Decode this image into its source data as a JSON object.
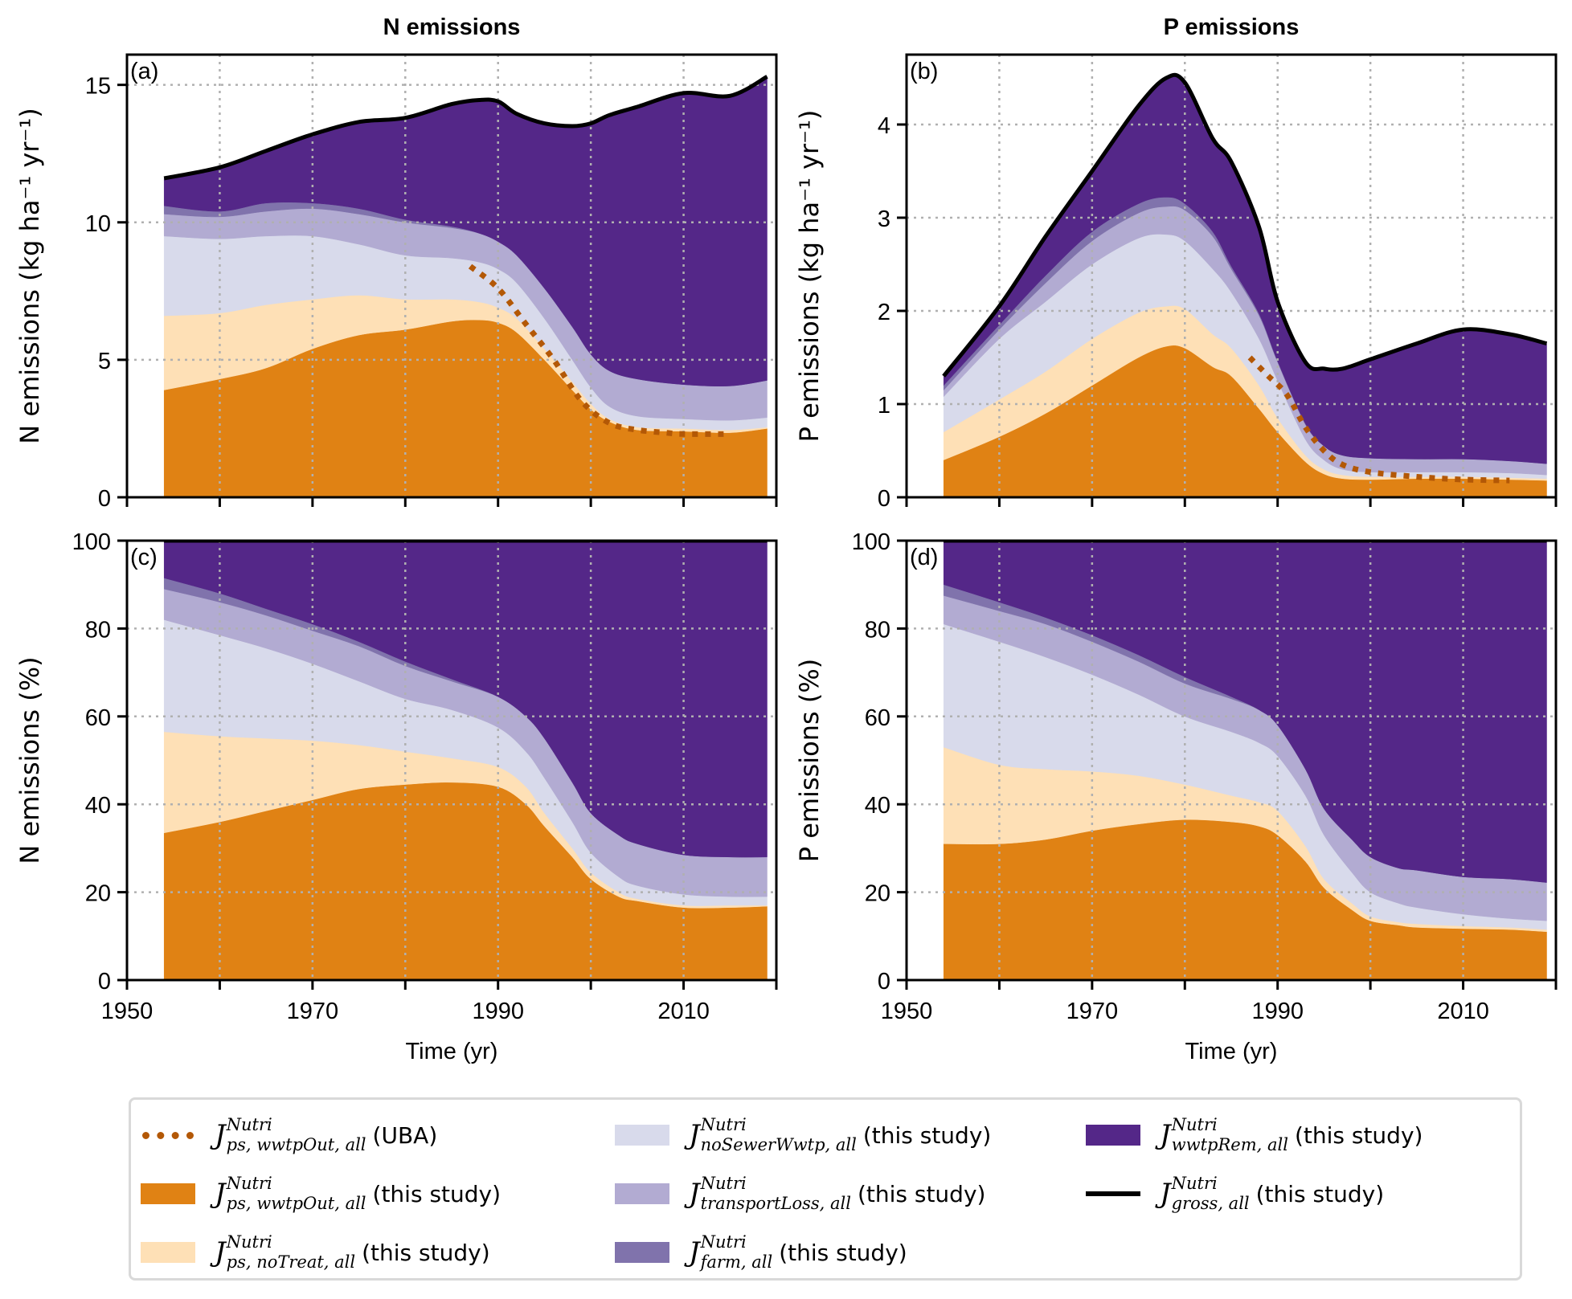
{
  "figure": {
    "col_titles": [
      "N emissions",
      "P emissions"
    ],
    "xlabel": "Time (yr)",
    "colors": {
      "wwtpOut": "#e08214",
      "noTreat": "#fee0b6",
      "noSewerWwtp": "#d8daeb",
      "transportLoss": "#b2abd2",
      "farm": "#8073ac",
      "wwtpRem": "#542788",
      "gross": "#000000",
      "uba": "#b35806",
      "grid": "#b0b0b0"
    }
  },
  "legend": {
    "symbol_base": "J",
    "symbol_sup": "Nutri",
    "items": [
      {
        "key": "uba",
        "style": "dotted",
        "sub": "ps, wwtpOut, all",
        "suffix": "(UBA)"
      },
      {
        "key": "wwtpOut",
        "style": "patch",
        "sub": "ps, wwtpOut, all",
        "suffix": "(this study)"
      },
      {
        "key": "noTreat",
        "style": "patch",
        "sub": "ps, noTreat, all",
        "suffix": "(this study)"
      },
      {
        "key": "noSewerWwtp",
        "style": "patch",
        "sub": "noSewerWwtp, all",
        "suffix": "(this study)"
      },
      {
        "key": "transportLoss",
        "style": "patch",
        "sub": "transportLoss, all",
        "suffix": "(this study)"
      },
      {
        "key": "farm",
        "style": "patch",
        "sub": "farm, all",
        "suffix": "(this study)"
      },
      {
        "key": "wwtpRem",
        "style": "patch",
        "sub": "wwtpRem, all",
        "suffix": "(this study)"
      },
      {
        "key": "gross",
        "style": "line",
        "sub": "gross, all",
        "suffix": "(this study)"
      }
    ]
  },
  "chart_data": [
    {
      "panel": "(a)",
      "type": "area",
      "stacked": true,
      "title": "N emissions",
      "xlabel": "",
      "ylabel": "N emissions (kg ha⁻¹ yr⁻¹)",
      "xlim": [
        1950,
        2020
      ],
      "ylim": [
        0,
        16.1
      ],
      "xticks": [
        1950,
        1960,
        1970,
        1980,
        1990,
        2000,
        2010,
        2020
      ],
      "xticklabels": [
        "",
        "",
        "",
        "",
        "",
        "",
        "",
        ""
      ],
      "yticks": [
        0,
        5,
        10,
        15
      ],
      "yticklabels": [
        "0",
        "5",
        "10",
        "15"
      ],
      "grid": true,
      "x": [
        1954,
        1960,
        1965,
        1970,
        1975,
        1980,
        1985,
        1988,
        1990,
        1992,
        1995,
        1998,
        2000,
        2002,
        2005,
        2010,
        2015,
        2019
      ],
      "cumulative_tops": {
        "wwtpOut": [
          3.9,
          4.3,
          4.7,
          5.4,
          5.9,
          6.1,
          6.4,
          6.45,
          6.35,
          6.0,
          5.0,
          3.9,
          3.2,
          2.75,
          2.45,
          2.4,
          2.35,
          2.5
        ],
        "noTreat": [
          6.6,
          6.7,
          7.0,
          7.2,
          7.35,
          7.2,
          7.2,
          7.1,
          6.9,
          6.5,
          5.4,
          4.2,
          3.4,
          2.85,
          2.55,
          2.5,
          2.45,
          2.55
        ],
        "noSewerWwtp": [
          9.5,
          9.4,
          9.5,
          9.5,
          9.2,
          8.8,
          8.7,
          8.55,
          8.3,
          7.8,
          6.5,
          5.0,
          4.0,
          3.3,
          2.95,
          2.85,
          2.8,
          2.9
        ],
        "transportLoss": [
          10.3,
          10.2,
          10.4,
          10.5,
          10.3,
          10.0,
          9.8,
          9.6,
          9.3,
          8.8,
          7.6,
          6.2,
          5.2,
          4.6,
          4.3,
          4.1,
          4.05,
          4.25
        ],
        "farm": [
          10.6,
          10.4,
          10.7,
          10.7,
          10.5,
          10.1,
          9.85,
          9.6,
          9.3,
          8.8,
          7.6,
          6.2,
          5.2,
          4.6,
          4.3,
          4.1,
          4.05,
          4.25
        ],
        "wwtpRem": [
          11.6,
          12.0,
          12.6,
          13.2,
          13.65,
          13.8,
          14.3,
          14.45,
          14.4,
          13.95,
          13.6,
          13.5,
          13.6,
          13.9,
          14.2,
          14.7,
          14.6,
          15.3
        ]
      },
      "gross": [
        11.6,
        12.0,
        12.6,
        13.2,
        13.65,
        13.8,
        14.3,
        14.45,
        14.4,
        13.95,
        13.6,
        13.5,
        13.6,
        13.9,
        14.2,
        14.7,
        14.6,
        15.3
      ],
      "uba": {
        "x": [
          1987,
          1990,
          1993,
          1996,
          1999,
          2002,
          2005,
          2008,
          2010,
          2015
        ],
        "y": [
          8.4,
          7.6,
          6.3,
          5.0,
          3.5,
          2.7,
          2.45,
          2.35,
          2.3,
          2.3
        ]
      }
    },
    {
      "panel": "(b)",
      "type": "area",
      "stacked": true,
      "title": "P emissions",
      "xlabel": "",
      "ylabel": "P emissions (kg ha⁻¹ yr⁻¹)",
      "xlim": [
        1950,
        2020
      ],
      "ylim": [
        0,
        4.75
      ],
      "xticks": [
        1950,
        1960,
        1970,
        1980,
        1990,
        2000,
        2010,
        2020
      ],
      "xticklabels": [
        "",
        "",
        "",
        "",
        "",
        "",
        "",
        ""
      ],
      "yticks": [
        0,
        1,
        2,
        3,
        4
      ],
      "yticklabels": [
        "0",
        "1",
        "2",
        "3",
        "4"
      ],
      "grid": true,
      "x": [
        1954,
        1960,
        1965,
        1970,
        1975,
        1978,
        1980,
        1983,
        1985,
        1988,
        1990,
        1993,
        1995,
        1997,
        2000,
        2005,
        2010,
        2015,
        2019
      ],
      "cumulative_tops": {
        "wwtpOut": [
          0.4,
          0.65,
          0.9,
          1.2,
          1.5,
          1.62,
          1.6,
          1.4,
          1.3,
          0.95,
          0.7,
          0.38,
          0.25,
          0.2,
          0.19,
          0.2,
          0.2,
          0.19,
          0.18
        ],
        "noTreat": [
          0.7,
          1.05,
          1.35,
          1.7,
          1.98,
          2.05,
          2.02,
          1.75,
          1.6,
          1.2,
          0.85,
          0.45,
          0.3,
          0.24,
          0.22,
          0.22,
          0.22,
          0.21,
          0.2
        ],
        "noSewerWwtp": [
          1.08,
          1.7,
          2.1,
          2.5,
          2.78,
          2.82,
          2.75,
          2.45,
          2.2,
          1.7,
          1.25,
          0.62,
          0.4,
          0.3,
          0.27,
          0.27,
          0.27,
          0.26,
          0.24
        ],
        "transportLoss": [
          1.15,
          1.8,
          2.3,
          2.75,
          3.05,
          3.12,
          3.08,
          2.8,
          2.45,
          1.95,
          1.45,
          0.78,
          0.55,
          0.45,
          0.42,
          0.41,
          0.41,
          0.39,
          0.36
        ],
        "farm": [
          1.2,
          1.85,
          2.38,
          2.85,
          3.15,
          3.22,
          3.15,
          2.85,
          2.48,
          1.97,
          1.46,
          0.79,
          0.55,
          0.45,
          0.42,
          0.41,
          0.41,
          0.39,
          0.36
        ],
        "wwtpRem": [
          1.3,
          2.05,
          2.8,
          3.5,
          4.2,
          4.5,
          4.45,
          3.85,
          3.6,
          2.9,
          2.1,
          1.45,
          1.38,
          1.38,
          1.48,
          1.65,
          1.8,
          1.75,
          1.65
        ]
      },
      "gross": [
        1.3,
        2.05,
        2.8,
        3.5,
        4.2,
        4.5,
        4.45,
        3.85,
        3.6,
        2.9,
        2.1,
        1.45,
        1.38,
        1.38,
        1.48,
        1.65,
        1.8,
        1.75,
        1.65
      ],
      "uba": {
        "x": [
          1987,
          1989,
          1991,
          1993,
          1995,
          1997,
          2000,
          2005,
          2010,
          2015
        ],
        "y": [
          1.5,
          1.3,
          1.1,
          0.75,
          0.5,
          0.35,
          0.27,
          0.22,
          0.19,
          0.18
        ]
      }
    },
    {
      "panel": "(c)",
      "type": "area",
      "stacked": true,
      "title": "",
      "xlabel": "Time (yr)",
      "ylabel": "N emissions (%)",
      "xlim": [
        1950,
        2020
      ],
      "ylim": [
        0,
        100
      ],
      "xticks": [
        1950,
        1960,
        1970,
        1980,
        1990,
        2000,
        2010,
        2020
      ],
      "xticklabels": [
        "1950",
        "",
        "1970",
        "",
        "1990",
        "",
        "2010",
        ""
      ],
      "yticks": [
        0,
        20,
        40,
        60,
        80,
        100
      ],
      "yticklabels": [
        "0",
        "20",
        "40",
        "60",
        "80",
        "100"
      ],
      "grid": true,
      "x": [
        1954,
        1960,
        1965,
        1970,
        1975,
        1980,
        1985,
        1990,
        1993,
        1995,
        1998,
        2000,
        2003,
        2005,
        2010,
        2015,
        2019
      ],
      "cumulative_tops": {
        "wwtpOut": [
          33.5,
          36,
          38.5,
          41,
          43.5,
          44.5,
          45,
          44,
          40,
          35,
          28,
          23,
          19,
          18,
          16.5,
          16.5,
          16.8
        ],
        "noTreat": [
          56.5,
          55.5,
          55,
          54.5,
          53.5,
          52,
          50.5,
          48.5,
          44,
          38,
          30,
          24.5,
          20,
          18.5,
          17,
          17,
          17
        ],
        "noSewerWwtp": [
          82,
          78.5,
          75.5,
          72,
          68,
          64,
          61.5,
          57.5,
          52,
          46,
          36,
          29,
          23.5,
          21.5,
          19.5,
          19,
          19
        ],
        "transportLoss": [
          89,
          86,
          83,
          79.5,
          76,
          71.5,
          68,
          64.5,
          60,
          55,
          45,
          38,
          33,
          31,
          28.5,
          28,
          28
        ],
        "farm": [
          91.5,
          88,
          84.5,
          81,
          77,
          72.5,
          68.5,
          64.5,
          60,
          55,
          45,
          38,
          33,
          31,
          28.5,
          28,
          28
        ],
        "wwtpRem": [
          100,
          100,
          100,
          100,
          100,
          100,
          100,
          100,
          100,
          100,
          100,
          100,
          100,
          100,
          100,
          100,
          100
        ]
      },
      "gross": [
        100,
        100,
        100,
        100,
        100,
        100,
        100,
        100,
        100,
        100,
        100,
        100,
        100,
        100,
        100,
        100,
        100
      ]
    },
    {
      "panel": "(d)",
      "type": "area",
      "stacked": true,
      "title": "",
      "xlabel": "Time (yr)",
      "ylabel": "P emissions (%)",
      "xlim": [
        1950,
        2020
      ],
      "ylim": [
        0,
        100
      ],
      "xticks": [
        1950,
        1960,
        1970,
        1980,
        1990,
        2000,
        2010,
        2020
      ],
      "xticklabels": [
        "1950",
        "",
        "1970",
        "",
        "1990",
        "",
        "2010",
        ""
      ],
      "yticks": [
        0,
        20,
        40,
        60,
        80,
        100
      ],
      "yticklabels": [
        "0",
        "20",
        "40",
        "60",
        "80",
        "100"
      ],
      "grid": true,
      "x": [
        1954,
        1960,
        1965,
        1970,
        1975,
        1980,
        1985,
        1988,
        1990,
        1993,
        1995,
        1998,
        2000,
        2003,
        2005,
        2010,
        2015,
        2019
      ],
      "cumulative_tops": {
        "wwtpOut": [
          31,
          31,
          32,
          34,
          35.5,
          36.5,
          36,
          35,
          33,
          27,
          21,
          16,
          13.5,
          12.5,
          12,
          11.7,
          11.5,
          11
        ],
        "noTreat": [
          53,
          49,
          48,
          47.5,
          46.5,
          44.5,
          42,
          40.5,
          38.5,
          30.5,
          23,
          17.5,
          14.5,
          13.2,
          12.8,
          12.3,
          12,
          11.5
        ],
        "noSewerWwtp": [
          81,
          77,
          73.5,
          69.5,
          65,
          60,
          56.5,
          54,
          51,
          42,
          33,
          24.5,
          20,
          17.5,
          16.5,
          15,
          14,
          13.5
        ],
        "transportLoss": [
          87.5,
          84,
          81,
          77,
          72.5,
          67.5,
          64,
          61.5,
          58,
          48,
          39,
          32,
          28,
          25.5,
          25,
          23.5,
          23,
          22.2
        ],
        "farm": [
          90,
          86,
          82.5,
          78.5,
          74,
          69,
          64.5,
          61.5,
          58,
          48,
          39,
          32,
          28,
          25.5,
          25,
          23.5,
          23,
          22.2
        ],
        "wwtpRem": [
          100,
          100,
          100,
          100,
          100,
          100,
          100,
          100,
          100,
          100,
          100,
          100,
          100,
          100,
          100,
          100,
          100,
          100
        ]
      },
      "gross": [
        100,
        100,
        100,
        100,
        100,
        100,
        100,
        100,
        100,
        100,
        100,
        100,
        100,
        100,
        100,
        100,
        100,
        100
      ]
    }
  ]
}
